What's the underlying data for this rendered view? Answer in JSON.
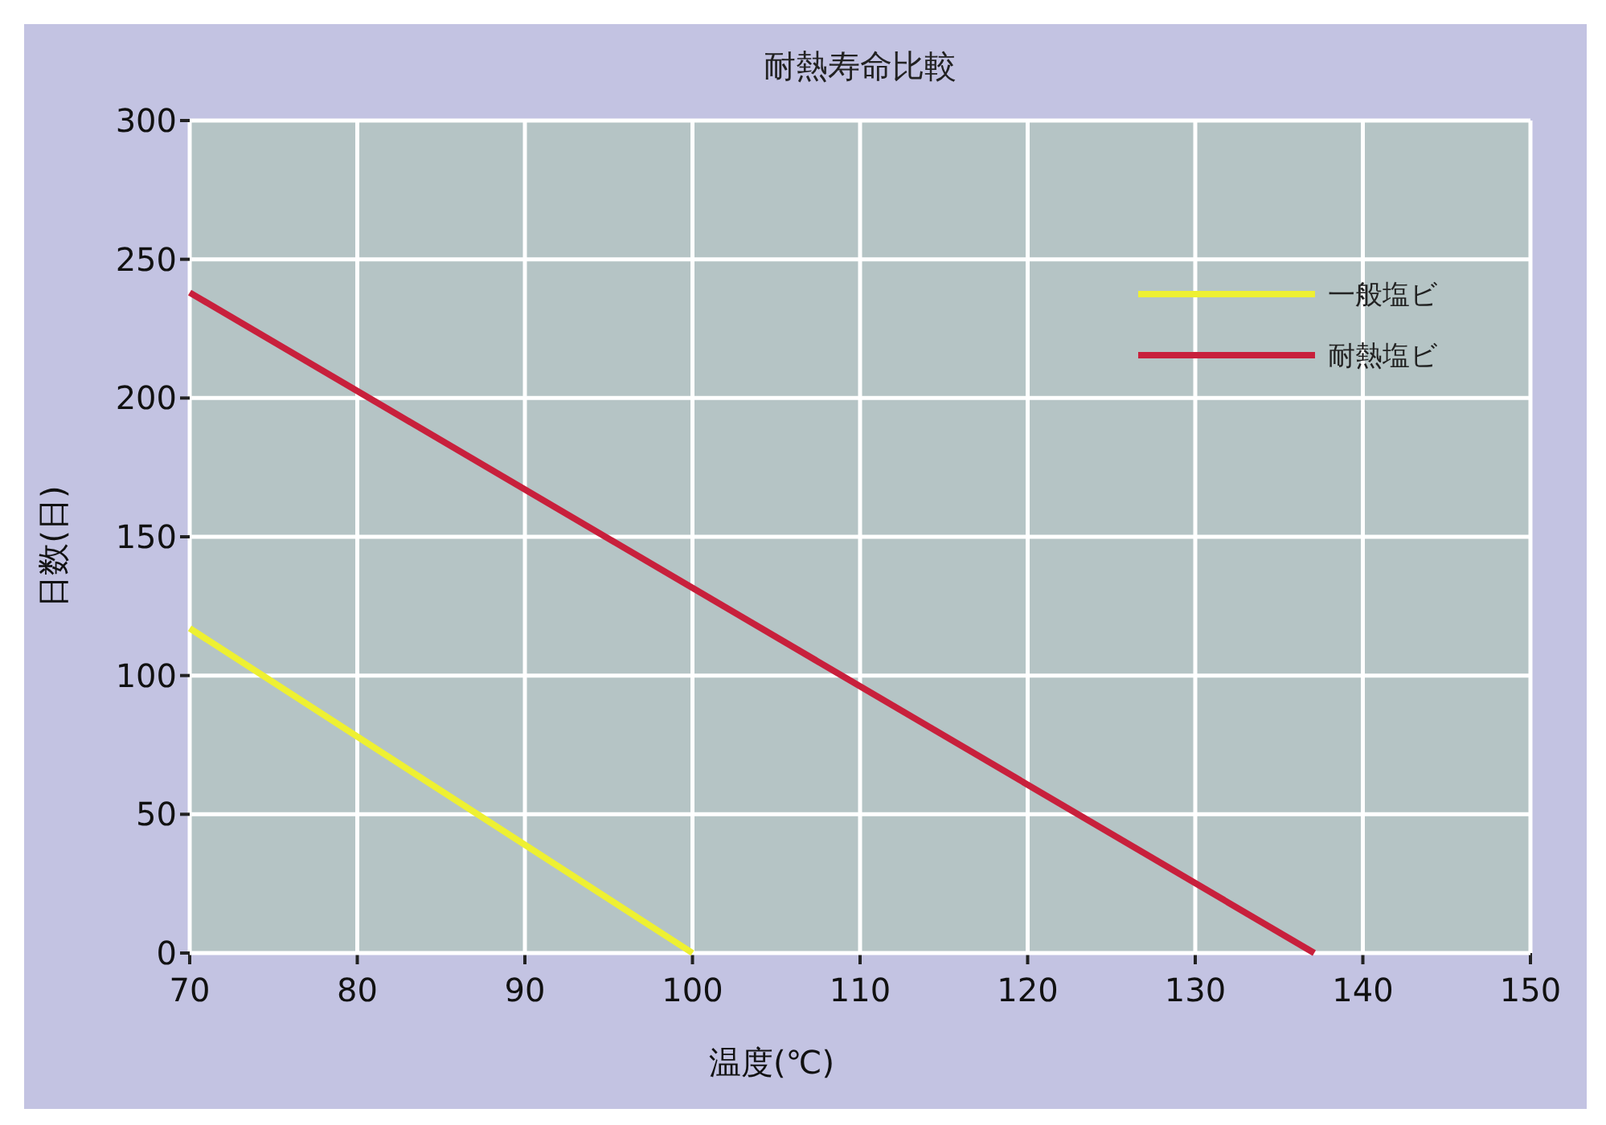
{
  "chart_data": {
    "type": "line",
    "title": "耐熱寿命比較",
    "xlabel": "温度(℃)",
    "ylabel": "日数(日)",
    "xlim": [
      70,
      150
    ],
    "xticks": [
      70,
      80,
      90,
      100,
      110,
      120,
      130,
      140,
      150
    ],
    "ylim": [
      0,
      300
    ],
    "yticks": [
      0,
      50,
      100,
      150,
      200,
      250,
      300
    ],
    "grid": true,
    "legend": "top right",
    "line_style": "solid",
    "marker": "none",
    "series": [
      {
        "name": "一般塩ビ",
        "color": "#eef032",
        "x": [
          70,
          100
        ],
        "values": [
          117,
          0
        ]
      },
      {
        "name": "耐熱塩ビ",
        "color": "#c8203c",
        "x": [
          70,
          137.1
        ],
        "values": [
          238,
          0
        ]
      }
    ]
  }
}
